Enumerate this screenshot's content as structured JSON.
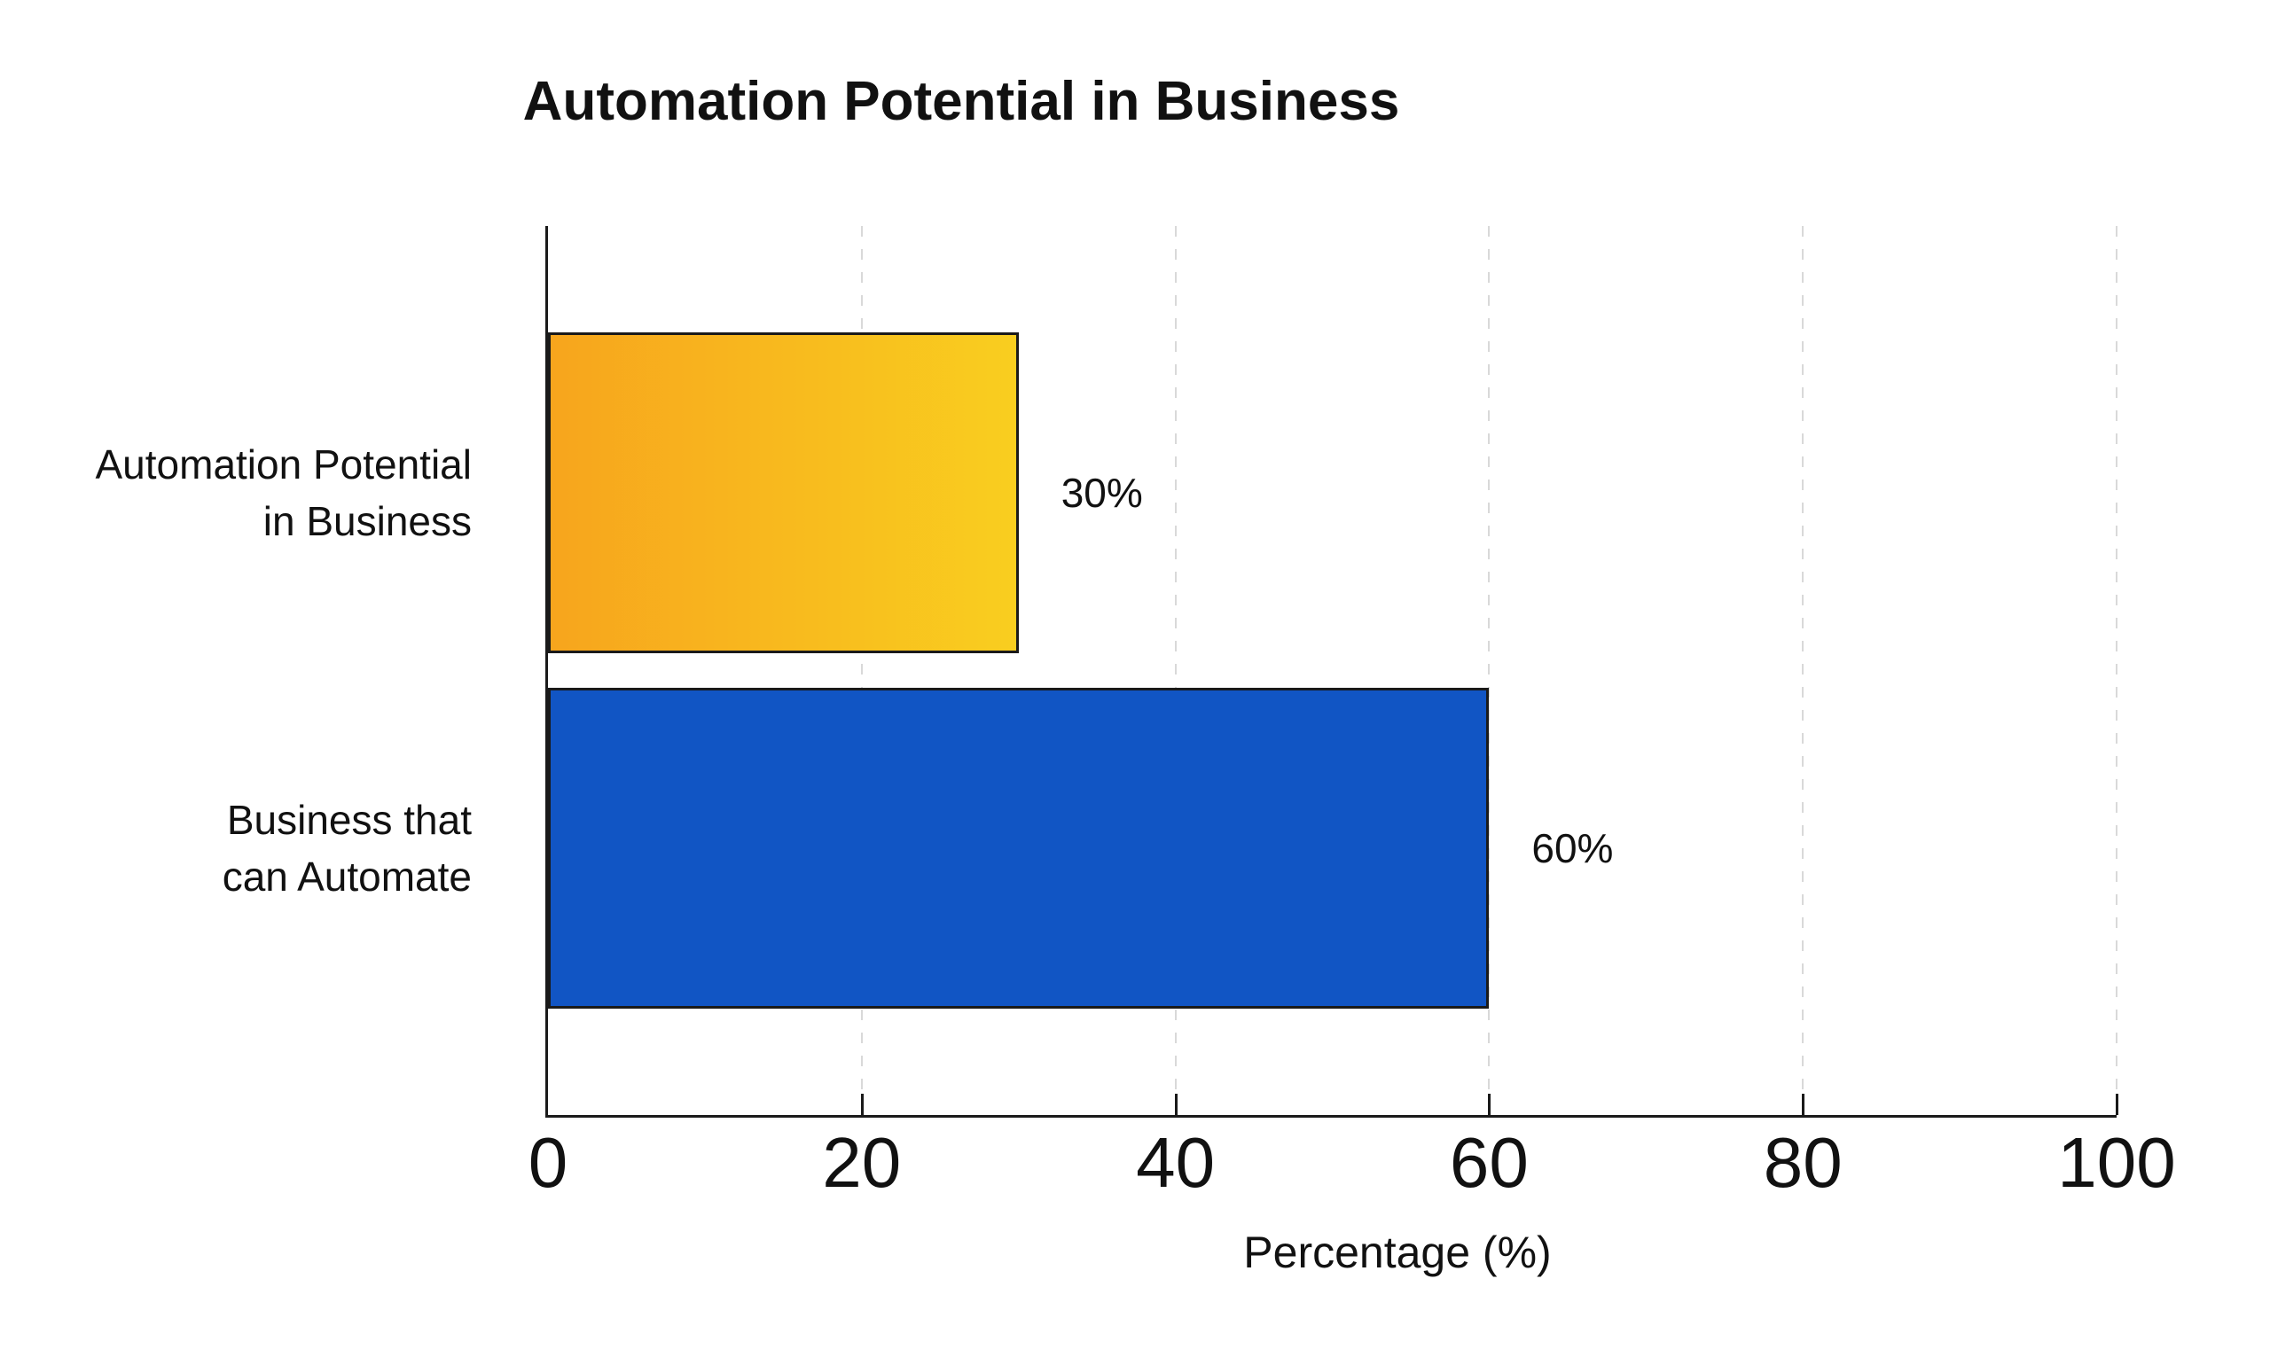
{
  "chart_data": {
    "type": "bar",
    "orientation": "horizontal",
    "title": "Automation Potential in Business",
    "categories": [
      "Automation Potential\nin Business",
      "Business that\ncan Automate"
    ],
    "values": [
      30,
      60
    ],
    "value_labels": [
      "30%",
      "60%"
    ],
    "bar_styles": [
      {
        "type": "gradient",
        "from": "#F7A51D",
        "to": "#F9CE1F"
      },
      {
        "type": "solid",
        "color": "#1155C4"
      }
    ],
    "bar_border_color": "#1A1A1A",
    "xlabel": "Percentage (%)",
    "x_ticks": [
      0,
      20,
      40,
      60,
      80,
      100
    ],
    "xlim": [
      0,
      100
    ],
    "grid": "vertical-dashed",
    "grid_color": "#D9D9D9",
    "legend": "none",
    "background_color": "#FFFFFF",
    "text_color": "#111111"
  }
}
